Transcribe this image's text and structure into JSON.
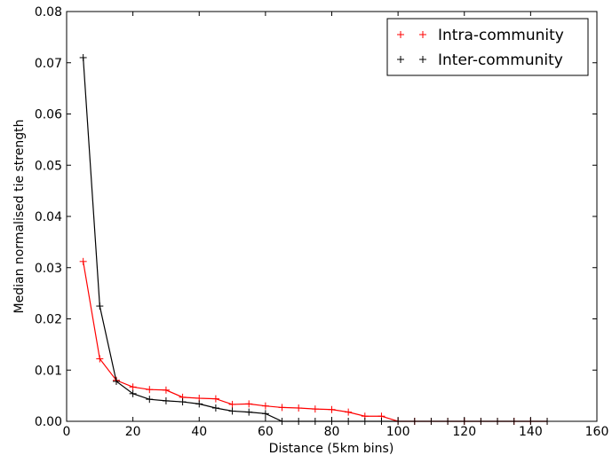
{
  "chart_data": {
    "type": "line",
    "title": "",
    "xlabel": "Distance (5km bins)",
    "ylabel": "Median normalised tie strength",
    "xlim": [
      0,
      160
    ],
    "ylim": [
      0,
      0.08
    ],
    "xticks": [
      0,
      20,
      40,
      60,
      80,
      100,
      120,
      140,
      160
    ],
    "yticks": [
      0.0,
      0.01,
      0.02,
      0.03,
      0.04,
      0.05,
      0.06,
      0.07,
      0.08
    ],
    "xtick_labels": [
      "0",
      "20",
      "40",
      "60",
      "80",
      "100",
      "120",
      "140",
      "160"
    ],
    "ytick_labels": [
      "0.00",
      "0.01",
      "0.02",
      "0.03",
      "0.04",
      "0.05",
      "0.06",
      "0.07",
      "0.08"
    ],
    "marker": "+",
    "grid": false,
    "legend_position": "top-right",
    "series": [
      {
        "name": "Intra-community",
        "color": "#ff0000",
        "x": [
          5,
          10,
          15,
          20,
          25,
          30,
          35,
          40,
          45,
          50,
          55,
          60,
          65,
          70,
          75,
          80,
          85,
          90,
          95,
          100,
          105,
          110,
          115,
          120,
          125,
          130,
          135,
          140,
          145
        ],
        "y": [
          0.0312,
          0.0122,
          0.008,
          0.0067,
          0.0062,
          0.0061,
          0.0047,
          0.0045,
          0.0044,
          0.0033,
          0.0034,
          0.003,
          0.0027,
          0.0026,
          0.0024,
          0.0023,
          0.0018,
          0.001,
          0.001,
          0.0,
          0.0,
          0.0,
          0.0,
          0.0,
          0.0,
          0.0,
          0.0,
          0.0,
          0.0
        ]
      },
      {
        "name": "Inter-community",
        "color": "#000000",
        "x": [
          5,
          10,
          15,
          20,
          25,
          30,
          35,
          40,
          45,
          50,
          55,
          60,
          65,
          70,
          75,
          80,
          85,
          90,
          95,
          100,
          105,
          110,
          115,
          120,
          125,
          130,
          135,
          140,
          145
        ],
        "y": [
          0.071,
          0.0225,
          0.0078,
          0.0054,
          0.0043,
          0.004,
          0.0038,
          0.0034,
          0.0026,
          0.002,
          0.0018,
          0.0015,
          0.0,
          0.0,
          0.0,
          0.0,
          0.0,
          0.0,
          0.0,
          0.0,
          0.0,
          0.0,
          0.0,
          0.0,
          0.0,
          0.0,
          0.0,
          0.0,
          0.0
        ]
      }
    ]
  }
}
